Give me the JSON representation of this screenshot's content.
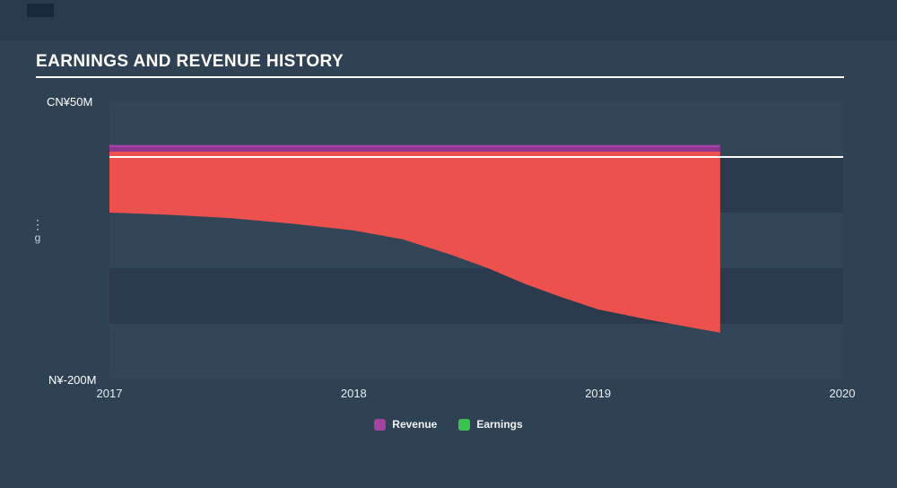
{
  "title": "EARNINGS AND REVENUE HISTORY",
  "colors": {
    "background": "#2f4254",
    "band_light": "#334658",
    "band_dark": "#2b3a4c",
    "loss_fill": "#ec514e",
    "revenue_fill": "#8f3590",
    "revenue_edge": "#a344a1",
    "earnings_green": "#3bc34f",
    "zero_line": "#ffffff"
  },
  "y_axis": {
    "top_label": "CN¥50M",
    "bottom_label": "N¥-200M"
  },
  "x_axis": {
    "ticks": [
      "2017",
      "2018",
      "2019",
      "2020"
    ]
  },
  "left_edge_fragment": {
    "dots": "⋮",
    "char": "g"
  },
  "legend": [
    {
      "label": "Revenue",
      "color": "#a344a1"
    },
    {
      "label": "Earnings",
      "color": "#3bc34f"
    }
  ],
  "chart_data": {
    "type": "area",
    "title": "EARNINGS AND REVENUE HISTORY",
    "currency": "CN¥",
    "unit": "M",
    "x_range": [
      2017,
      2020
    ],
    "data_end_x": 2019.5,
    "ylim": [
      -200,
      50
    ],
    "grid": "horizontal-bands-every-50M",
    "legend_position": "bottom-center",
    "x": [
      2017,
      2017.25,
      2017.5,
      2017.75,
      2018,
      2018.2,
      2018.4,
      2018.55,
      2018.7,
      2018.85,
      2019,
      2019.2,
      2019.4,
      2019.5
    ],
    "series": [
      {
        "name": "Revenue",
        "color": "#a344a1",
        "values": [
          10,
          10,
          10,
          10,
          10,
          10,
          10,
          10,
          10,
          10,
          10,
          10,
          10,
          10
        ]
      },
      {
        "name": "Earnings",
        "color": "#ec514e",
        "values": [
          -50,
          -52,
          -55,
          -60,
          -66,
          -74,
          -88,
          -100,
          -114,
          -126,
          -137,
          -146,
          -154,
          -158
        ]
      }
    ]
  }
}
